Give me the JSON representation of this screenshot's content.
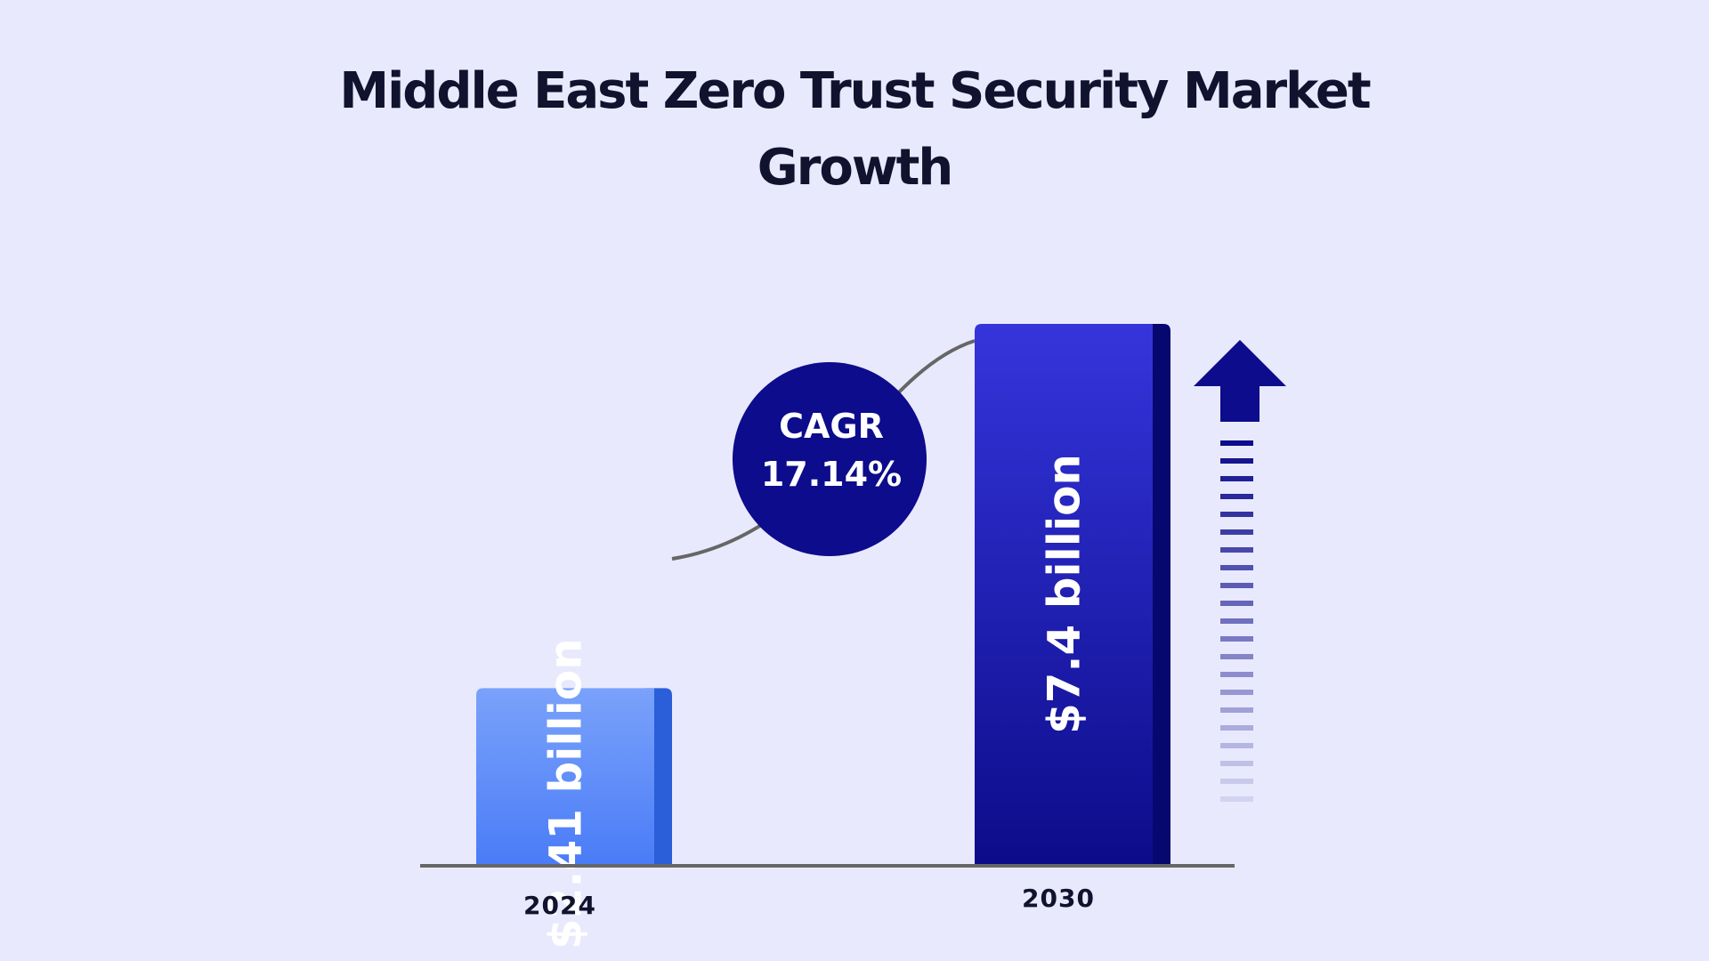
{
  "colors": {
    "background": "#e9e9fd",
    "bar_2024_top": "#7aa2fb",
    "bar_2024_bottom": "#4a7cf7",
    "bar_2024_side": "#2a5fd9",
    "bar_2030_top": "#3535dc",
    "bar_2030_bottom": "#0c0c8a",
    "bar_2030_side": "#070770",
    "cagr_circle": "#0c0c8c",
    "arrow": "#0c0c8c",
    "axis": "#666666",
    "title": "#10122e"
  },
  "chart_data": {
    "type": "bar",
    "title": "Middle East Zero Trust Security Market Growth",
    "categories": [
      "2024",
      "2030"
    ],
    "values": [
      2.41,
      7.4
    ],
    "data_labels": [
      "$2.41 billion",
      "$7.4 billion"
    ],
    "unit": "billion USD",
    "cagr": {
      "label": "CAGR",
      "value": "17.14%"
    },
    "ylim": [
      0,
      7.4
    ],
    "grid": false,
    "legend": "none"
  }
}
